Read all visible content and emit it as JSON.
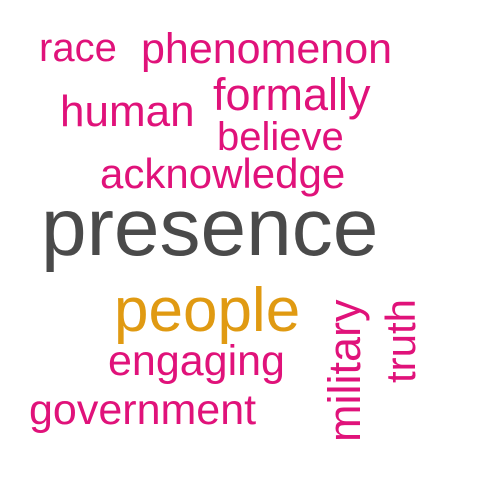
{
  "word_cloud": {
    "colors": {
      "primary": "#e0127a",
      "dominant": "#4a4a4a",
      "secondary": "#e09a12"
    },
    "words": [
      {
        "id": "race",
        "text": "race"
      },
      {
        "id": "phenomenon",
        "text": "phenomenon"
      },
      {
        "id": "human",
        "text": "human"
      },
      {
        "id": "formally",
        "text": "formally"
      },
      {
        "id": "believe",
        "text": "believe"
      },
      {
        "id": "acknowledge",
        "text": "acknowledge"
      },
      {
        "id": "presence",
        "text": "presence"
      },
      {
        "id": "people",
        "text": "people"
      },
      {
        "id": "engaging",
        "text": "engaging"
      },
      {
        "id": "government",
        "text": "government"
      },
      {
        "id": "military",
        "text": "military"
      },
      {
        "id": "truth",
        "text": "truth"
      }
    ]
  }
}
